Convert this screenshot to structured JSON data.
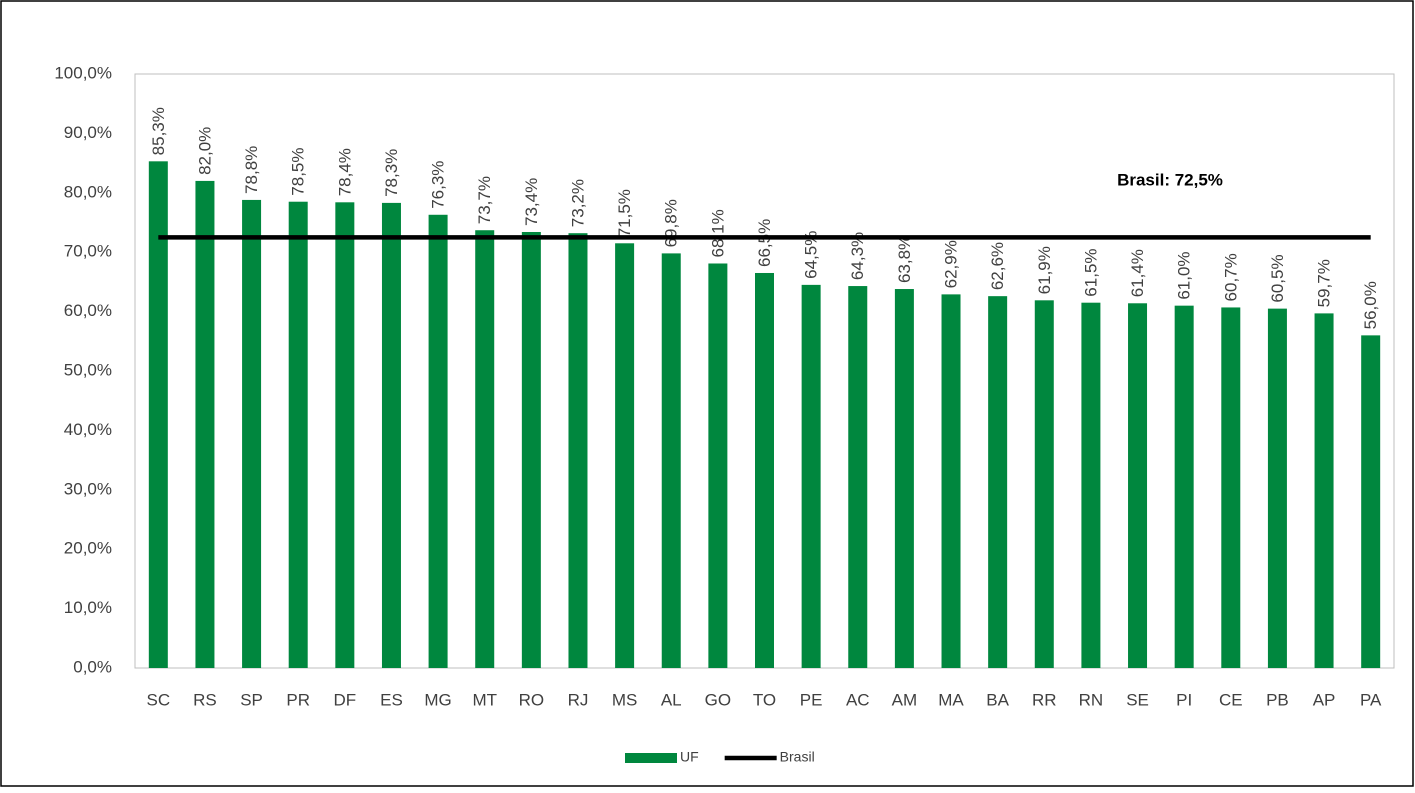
{
  "chart_data": {
    "type": "bar",
    "categories": [
      "SC",
      "RS",
      "SP",
      "PR",
      "DF",
      "ES",
      "MG",
      "MT",
      "RO",
      "RJ",
      "MS",
      "AL",
      "GO",
      "TO",
      "PE",
      "AC",
      "AM",
      "MA",
      "BA",
      "RR",
      "RN",
      "SE",
      "PI",
      "CE",
      "PB",
      "AP",
      "PA"
    ],
    "series": [
      {
        "name": "UF",
        "type": "bar",
        "color": "#00873e",
        "values": [
          85.3,
          82.0,
          78.8,
          78.5,
          78.4,
          78.3,
          76.3,
          73.7,
          73.4,
          73.2,
          71.5,
          69.8,
          68.1,
          66.5,
          64.5,
          64.3,
          63.8,
          62.9,
          62.6,
          61.9,
          61.5,
          61.4,
          61.0,
          60.7,
          60.5,
          59.7,
          56.0
        ],
        "value_labels": [
          "85,3%",
          "82,0%",
          "78,8%",
          "78,5%",
          "78,4%",
          "78,3%",
          "76,3%",
          "73,7%",
          "73,4%",
          "73,2%",
          "71,5%",
          "69,8%",
          "68,1%",
          "66,5%",
          "64,5%",
          "64,3%",
          "63,8%",
          "62,9%",
          "62,6%",
          "61,9%",
          "61,5%",
          "61,4%",
          "61,0%",
          "60,7%",
          "60,5%",
          "59,7%",
          "56,0%"
        ]
      },
      {
        "name": "Brasil",
        "type": "line",
        "color": "#000000",
        "values": [
          72.5,
          72.5,
          72.5,
          72.5,
          72.5,
          72.5,
          72.5,
          72.5,
          72.5,
          72.5,
          72.5,
          72.5,
          72.5,
          72.5,
          72.5,
          72.5,
          72.5,
          72.5,
          72.5,
          72.5,
          72.5,
          72.5,
          72.5,
          72.5,
          72.5,
          72.5,
          72.5
        ]
      }
    ],
    "annotation": "Brasil: 72,5%",
    "ylim": [
      0,
      100
    ],
    "yticks": [
      {
        "value": 0,
        "label": "0,0%"
      },
      {
        "value": 10,
        "label": "10,0%"
      },
      {
        "value": 20,
        "label": "20,0%"
      },
      {
        "value": 30,
        "label": "30,0%"
      },
      {
        "value": 40,
        "label": "40,0%"
      },
      {
        "value": 50,
        "label": "50,0%"
      },
      {
        "value": 60,
        "label": "60,0%"
      },
      {
        "value": 70,
        "label": "70,0%"
      },
      {
        "value": 80,
        "label": "80,0%"
      },
      {
        "value": 90,
        "label": "90,0%"
      },
      {
        "value": 100,
        "label": "100,0%"
      }
    ],
    "grid": false,
    "legend": "bottom"
  }
}
